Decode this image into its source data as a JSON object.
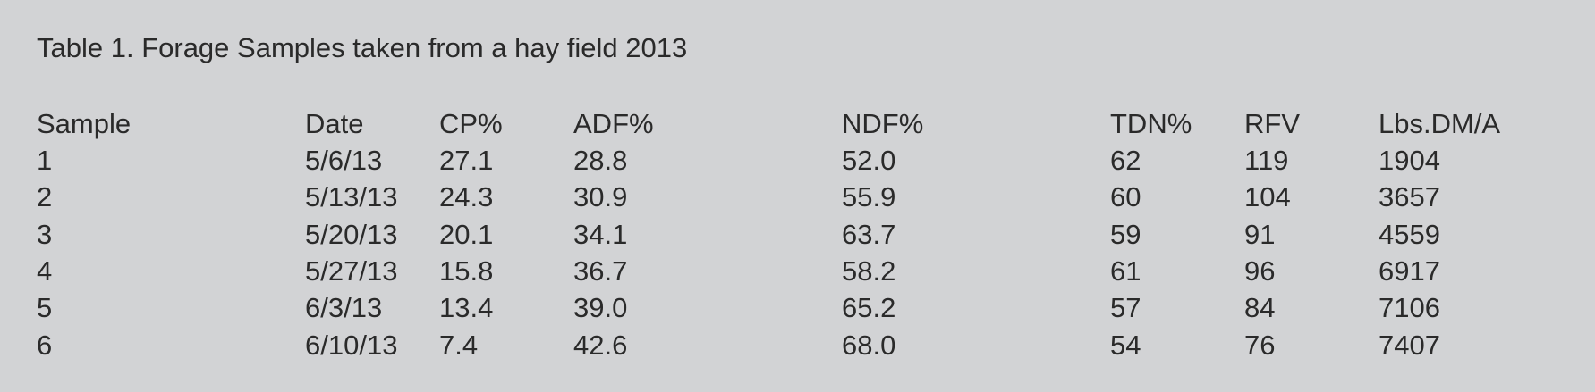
{
  "table": {
    "caption": "Table 1. Forage Samples taken from a hay field 2013",
    "headers": [
      "Sample",
      "Date",
      "CP%",
      "ADF%",
      "NDF%",
      "TDN%",
      "RFV",
      "Lbs.DM/A"
    ],
    "rows": [
      [
        "1",
        "5/6/13",
        "27.1",
        "28.8",
        "52.0",
        "62",
        "119",
        "1904"
      ],
      [
        "2",
        "5/13/13",
        "24.3",
        "30.9",
        "55.9",
        "60",
        "104",
        "3657"
      ],
      [
        "3",
        "5/20/13",
        "20.1",
        "34.1",
        "63.7",
        "59",
        "91",
        "4559"
      ],
      [
        "4",
        "5/27/13",
        "15.8",
        "36.7",
        "58.2",
        "61",
        "96",
        "6917"
      ],
      [
        "5",
        "6/3/13",
        "13.4",
        "39.0",
        "65.2",
        "57",
        "84",
        "7106"
      ],
      [
        "6",
        "6/10/13",
        "7.4",
        "42.6",
        "68.0",
        "54",
        "76",
        "7407"
      ]
    ]
  }
}
